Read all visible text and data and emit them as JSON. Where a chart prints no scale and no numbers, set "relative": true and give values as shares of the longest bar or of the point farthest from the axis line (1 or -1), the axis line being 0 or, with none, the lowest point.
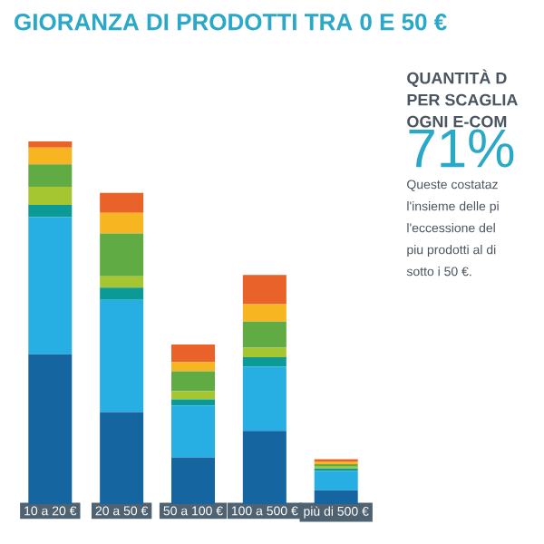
{
  "chart_data": {
    "type": "bar",
    "title": "GIORANZA DI PRODOTTI TRA 0 E 50 €",
    "relative": true,
    "stacked": true,
    "categories": [
      "10 a 20 €",
      "20 a 50 €",
      "50 a 100 €",
      "100 a 500 €",
      "più di 500 €"
    ],
    "series": [
      {
        "color": "#1565a0",
        "values": [
          0.413,
          0.254,
          0.129,
          0.202,
          0.038
        ]
      },
      {
        "color": "#27aee3",
        "values": [
          0.378,
          0.309,
          0.143,
          0.177,
          0.053
        ]
      },
      {
        "color": "#0c9a96",
        "values": [
          0.034,
          0.034,
          0.017,
          0.026,
          0.007
        ]
      },
      {
        "color": "#a6c631",
        "values": [
          0.05,
          0.031,
          0.022,
          0.026,
          0.005
        ]
      },
      {
        "color": "#61ab45",
        "values": [
          0.062,
          0.118,
          0.055,
          0.072,
          0.007
        ]
      },
      {
        "color": "#f6b521",
        "values": [
          0.046,
          0.057,
          0.026,
          0.048,
          0.007
        ]
      },
      {
        "color": "#e8622a",
        "values": [
          0.017,
          0.055,
          0.048,
          0.081,
          0.007
        ]
      }
    ],
    "annotations": [
      "QUANTITÀ D",
      "PER SCAGLIA",
      "OGNI E-COM",
      "71%",
      "Queste costataz",
      "l'insieme delle pi",
      "l'eccessione del",
      "piu prodotti al di",
      "sotto i 50 €."
    ]
  }
}
